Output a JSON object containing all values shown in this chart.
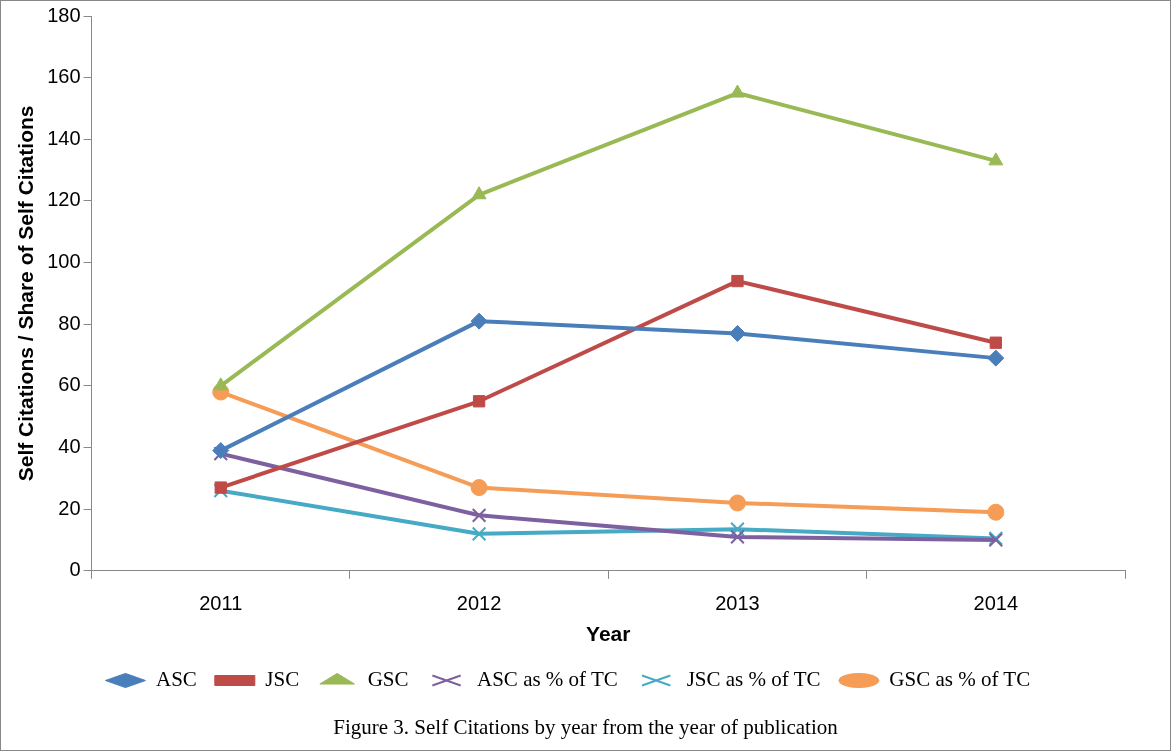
{
  "chart_data": {
    "type": "line",
    "xlabel": "Year",
    "ylabel": "Self Citations / Share of Self Citations",
    "categories": [
      "2011",
      "2012",
      "2013",
      "2014"
    ],
    "series": [
      {
        "name": "ASC",
        "color": "#4a7ebb",
        "marker": "diamond",
        "values": [
          39,
          81,
          77,
          69
        ]
      },
      {
        "name": "JSC",
        "color": "#be4b48",
        "marker": "square",
        "values": [
          27,
          55,
          94,
          74
        ]
      },
      {
        "name": "GSC",
        "color": "#98b954",
        "marker": "triangle",
        "values": [
          60,
          122,
          155,
          133
        ]
      },
      {
        "name": "ASC as % of TC",
        "color": "#7d60a0",
        "marker": "cross",
        "values": [
          38,
          18,
          11,
          10
        ]
      },
      {
        "name": "JSC as % of TC",
        "color": "#46aac5",
        "marker": "cross",
        "values": [
          26,
          12,
          13.5,
          10.5
        ]
      },
      {
        "name": "GSC as % of TC",
        "color": "#f59d56",
        "marker": "circle",
        "values": [
          58,
          27,
          22,
          19
        ]
      }
    ],
    "ylim": [
      0,
      180
    ],
    "yticks": [
      0,
      20,
      40,
      60,
      80,
      100,
      120,
      140,
      160,
      180
    ],
    "grid": false,
    "legend": "bottom",
    "line_style": "solid",
    "annotations": [
      "Figure 3. Self Citations by year from the year of publication"
    ]
  }
}
